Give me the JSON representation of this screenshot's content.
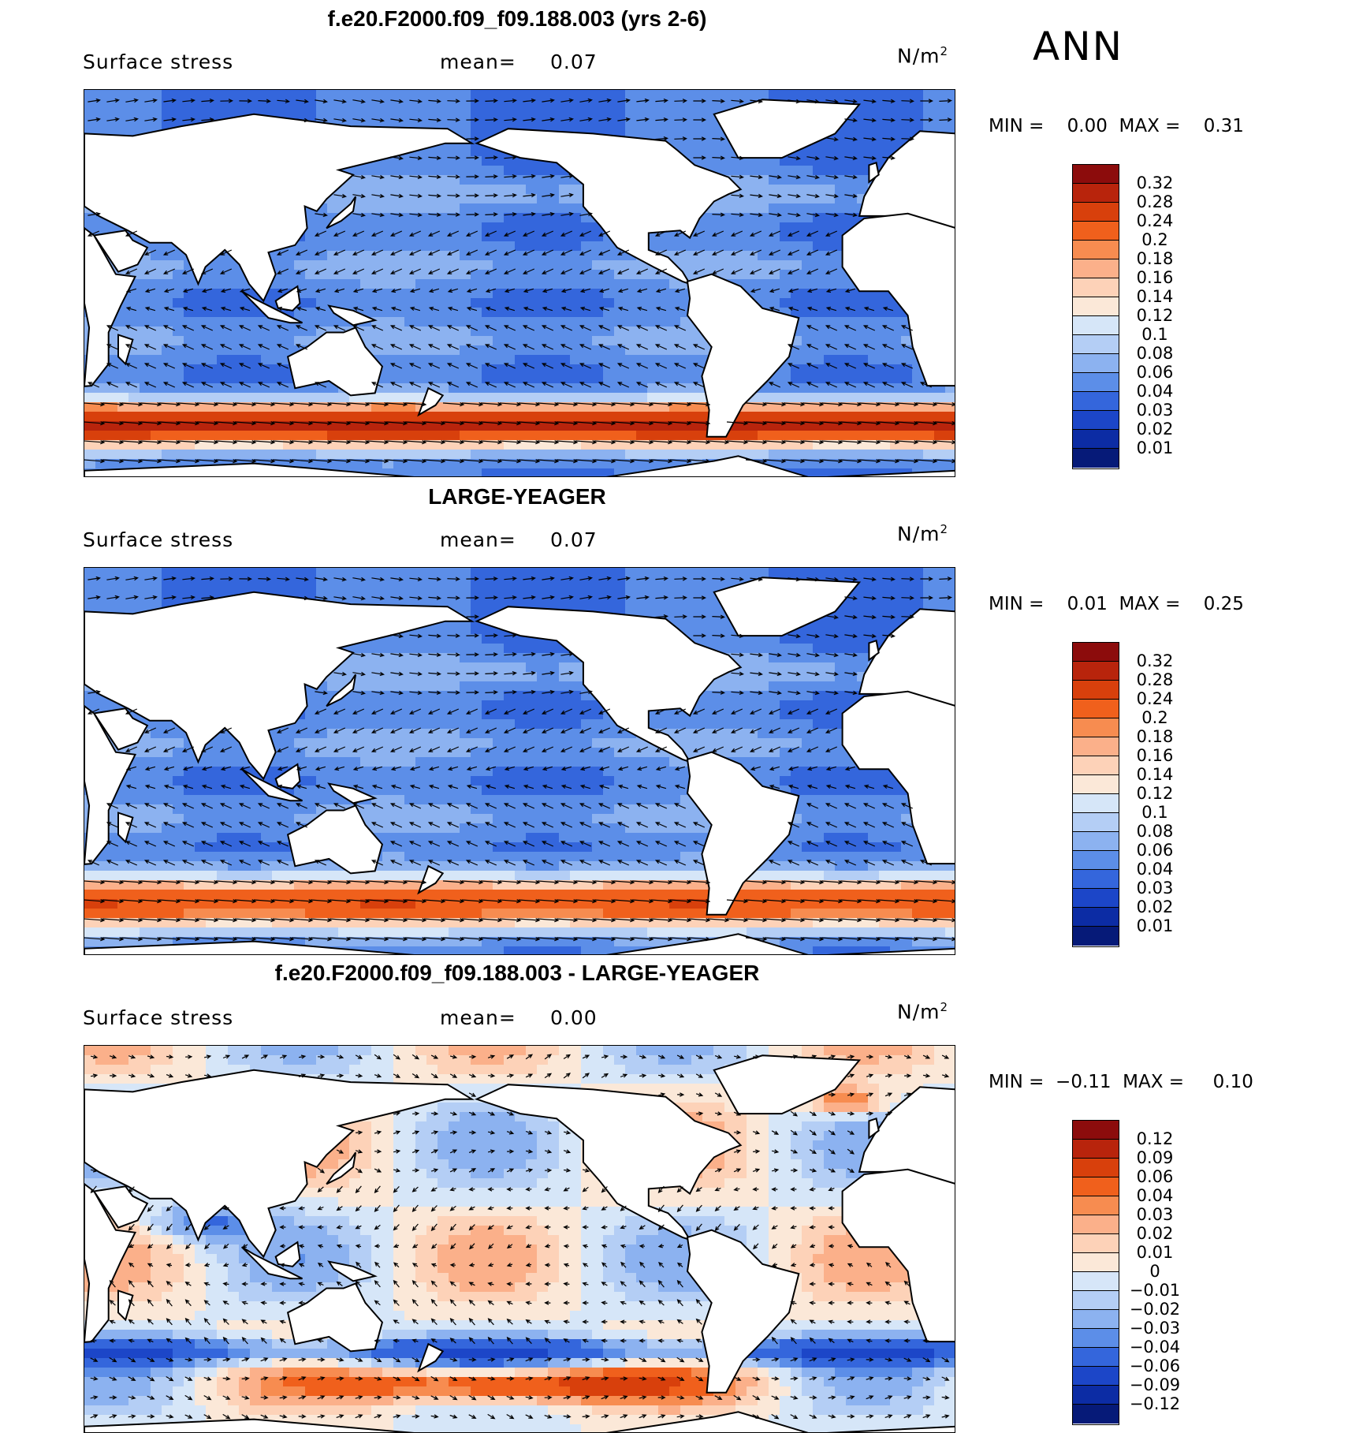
{
  "season": "ANN",
  "panels": [
    {
      "title": "f.e20.F2000.f09_f09.188.003 (yrs 2-6)",
      "variable": "Surface stress",
      "mean_label": "mean=",
      "mean_value": "0.07",
      "units_base": "N/m",
      "units_exp": "2",
      "min_label": "MIN =",
      "min_value": "0.00",
      "max_label": "MAX =",
      "max_value": "0.31",
      "scale": "sequential",
      "colorbar": {
        "labels": [
          "0.32",
          "0.28",
          "0.24",
          "0.2",
          "0.18",
          "0.16",
          "0.14",
          "0.12",
          "0.1",
          "0.08",
          "0.06",
          "0.04",
          "0.03",
          "0.02",
          "0.01"
        ],
        "colors": [
          "#8c0c0c",
          "#b8240c",
          "#d8400c",
          "#f0601c",
          "#f78c50",
          "#fbb08a",
          "#fdd2b8",
          "#fbe8d8",
          "#d6e6f8",
          "#b4cef5",
          "#8cb2f0",
          "#5c8ee8",
          "#3466dc",
          "#1c46c8",
          "#0c2ca4",
          "#061a78"
        ]
      }
    },
    {
      "title": "LARGE-YEAGER",
      "variable": "Surface stress",
      "mean_label": "mean=",
      "mean_value": "0.07",
      "units_base": "N/m",
      "units_exp": "2",
      "min_label": "MIN =",
      "min_value": "0.01",
      "max_label": "MAX =",
      "max_value": "0.25",
      "scale": "sequential",
      "colorbar": {
        "labels": [
          "0.32",
          "0.28",
          "0.24",
          "0.2",
          "0.18",
          "0.16",
          "0.14",
          "0.12",
          "0.1",
          "0.08",
          "0.06",
          "0.04",
          "0.03",
          "0.02",
          "0.01"
        ],
        "colors": [
          "#8c0c0c",
          "#b8240c",
          "#d8400c",
          "#f0601c",
          "#f78c50",
          "#fbb08a",
          "#fdd2b8",
          "#fbe8d8",
          "#d6e6f8",
          "#b4cef5",
          "#8cb2f0",
          "#5c8ee8",
          "#3466dc",
          "#1c46c8",
          "#0c2ca4",
          "#061a78"
        ]
      }
    },
    {
      "title": "f.e20.F2000.f09_f09.188.003 - LARGE-YEAGER",
      "variable": "Surface stress",
      "mean_label": "mean=",
      "mean_value": "0.00",
      "units_base": "N/m",
      "units_exp": "2",
      "min_label": "MIN =",
      "min_value": "−0.11",
      "max_label": "MAX =",
      "max_value": "0.10",
      "scale": "difference",
      "colorbar": {
        "labels": [
          "0.12",
          "0.09",
          "0.06",
          "0.04",
          "0.03",
          "0.02",
          "0.01",
          "0",
          "−0.01",
          "−0.02",
          "−0.03",
          "−0.04",
          "−0.06",
          "−0.09",
          "−0.12"
        ],
        "colors": [
          "#8c0c0c",
          "#b8240c",
          "#d8400c",
          "#f0601c",
          "#f78c50",
          "#fbb08a",
          "#fdd2b8",
          "#fbe8d8",
          "#d6e6f8",
          "#b4cef5",
          "#8cb2f0",
          "#5c8ee8",
          "#3466dc",
          "#1c46c8",
          "#0c2ca4",
          "#061a78"
        ]
      }
    }
  ]
}
